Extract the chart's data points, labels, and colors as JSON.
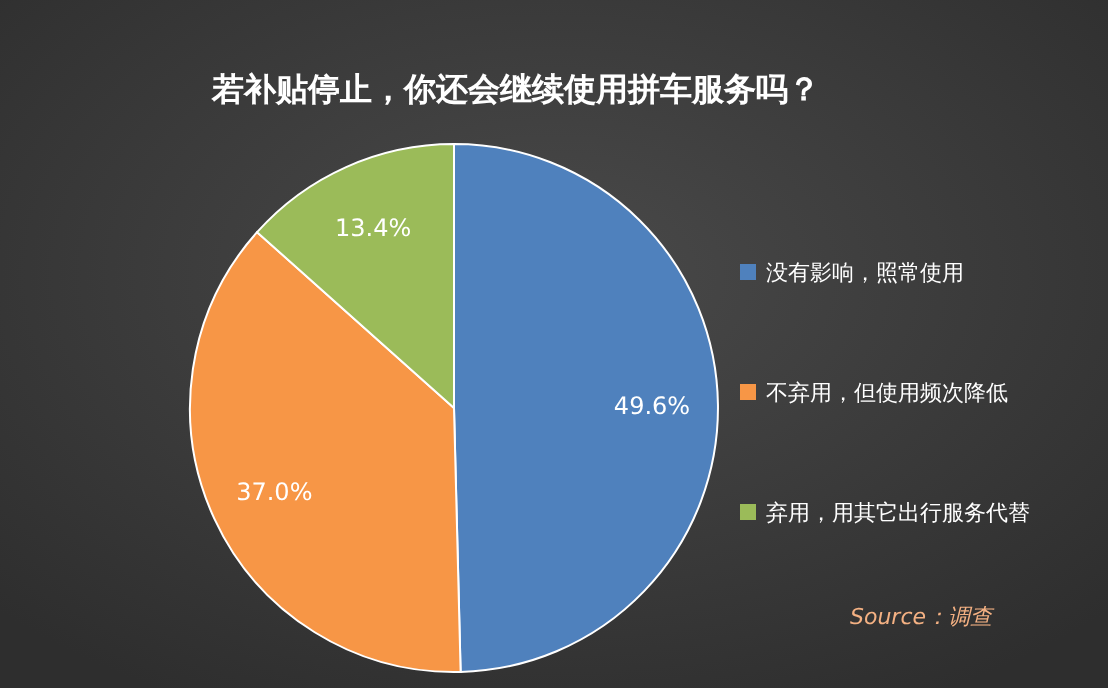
{
  "chart_data": {
    "type": "pie",
    "title": "若补贴停止，你还会继续使用拼车服务吗？",
    "categories": [
      "没有影响，照常使用",
      "不弃用，但使用频次降低",
      "弃用，用其它出行服务代替"
    ],
    "values": [
      49.6,
      37.0,
      13.4
    ],
    "colors": [
      "#4f81bd",
      "#f79646",
      "#9bbb59"
    ],
    "value_labels": [
      "49.6%",
      "37.0%",
      "13.4%"
    ],
    "legend": "right",
    "annotations": [
      "Source：调查"
    ]
  }
}
